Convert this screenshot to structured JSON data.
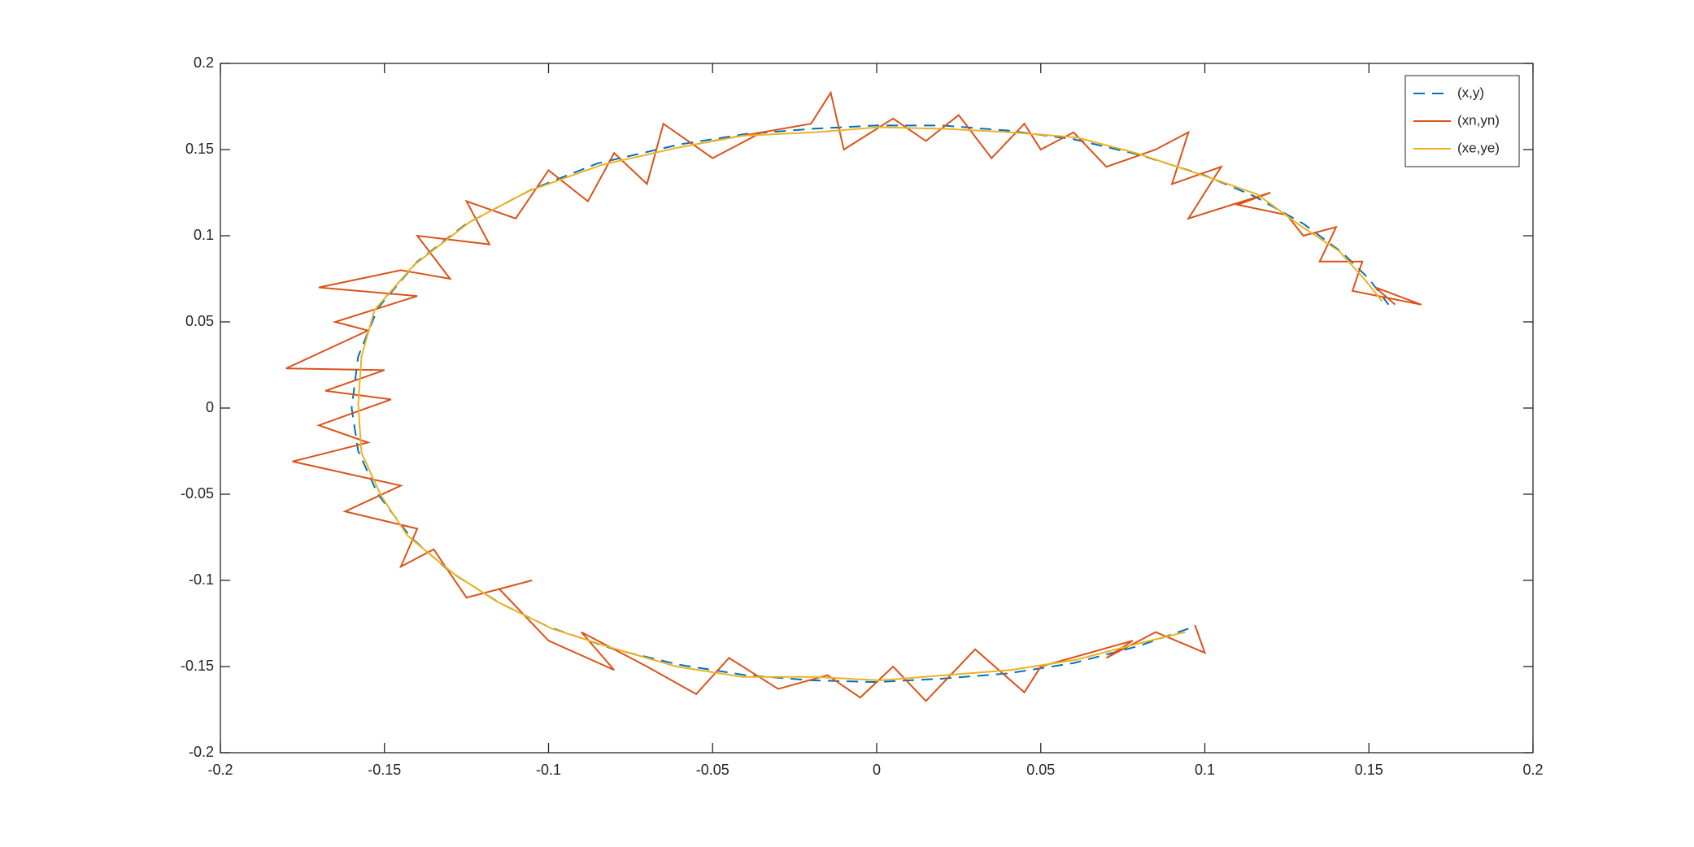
{
  "chart_data": {
    "type": "line",
    "xlim": [
      -0.2,
      0.2
    ],
    "ylim": [
      -0.2,
      0.2
    ],
    "xticks": [
      -0.2,
      -0.15,
      -0.1,
      -0.05,
      0,
      0.05,
      0.1,
      0.15,
      0.2
    ],
    "yticks": [
      -0.2,
      -0.15,
      -0.1,
      -0.05,
      0,
      0.05,
      0.1,
      0.15,
      0.2
    ],
    "grid": false,
    "legend": "northeast",
    "series": [
      {
        "name": "(x,y)",
        "color": "#0072BD",
        "line_style": "--",
        "x": [
          0.095,
          0.08,
          0.06,
          0.04,
          0.02,
          0,
          -0.02,
          -0.04,
          -0.06,
          -0.08,
          -0.1,
          -0.115,
          -0.13,
          -0.142,
          -0.152,
          -0.158,
          -0.16,
          -0.158,
          -0.152,
          -0.14,
          -0.125,
          -0.105,
          -0.085,
          -0.06,
          -0.04,
          -0.02,
          0,
          0.02,
          0.04,
          0.06,
          0.08,
          0.1,
          0.115,
          0.13,
          0.142,
          0.15,
          0.156
        ],
        "values": [
          -0.128,
          -0.138,
          -0.148,
          -0.154,
          -0.157,
          -0.159,
          -0.158,
          -0.155,
          -0.149,
          -0.14,
          -0.127,
          -0.113,
          -0.095,
          -0.075,
          -0.05,
          -0.025,
          0,
          0.03,
          0.058,
          0.085,
          0.107,
          0.127,
          0.142,
          0.153,
          0.159,
          0.162,
          0.164,
          0.164,
          0.161,
          0.156,
          0.147,
          0.135,
          0.123,
          0.107,
          0.09,
          0.075,
          0.06
        ]
      },
      {
        "name": "(xn,yn)",
        "color": "#D95319",
        "line_style": "-",
        "x": [
          0.097,
          0.1,
          0.085,
          0.07,
          0.078,
          0.05,
          0.045,
          0.03,
          0.015,
          0.005,
          -0.005,
          -0.015,
          -0.03,
          -0.045,
          -0.055,
          -0.07,
          -0.09,
          -0.08,
          -0.1,
          -0.115,
          -0.105,
          -0.125,
          -0.135,
          -0.145,
          -0.14,
          -0.162,
          -0.145,
          -0.178,
          -0.155,
          -0.17,
          -0.148,
          -0.168,
          -0.15,
          -0.18,
          -0.155,
          -0.165,
          -0.14,
          -0.17,
          -0.145,
          -0.13,
          -0.14,
          -0.118,
          -0.125,
          -0.11,
          -0.1,
          -0.088,
          -0.08,
          -0.07,
          -0.065,
          -0.05,
          -0.035,
          -0.05,
          -0.02,
          -0.014,
          -0.01,
          0.005,
          0.015,
          0.025,
          0.035,
          0.045,
          0.05,
          0.06,
          0.07,
          0.085,
          0.095,
          0.09,
          0.105,
          0.095,
          0.12,
          0.11,
          0.125,
          0.13,
          0.14,
          0.135,
          0.148,
          0.145,
          0.166,
          0.152,
          0.158
        ],
        "values": [
          -0.126,
          -0.142,
          -0.13,
          -0.145,
          -0.135,
          -0.15,
          -0.165,
          -0.14,
          -0.17,
          -0.15,
          -0.168,
          -0.155,
          -0.163,
          -0.145,
          -0.166,
          -0.15,
          -0.13,
          -0.152,
          -0.135,
          -0.105,
          -0.1,
          -0.11,
          -0.082,
          -0.092,
          -0.07,
          -0.06,
          -0.045,
          -0.031,
          -0.02,
          -0.01,
          0.005,
          0.01,
          0.022,
          0.023,
          0.045,
          0.05,
          0.065,
          0.07,
          0.08,
          0.075,
          0.1,
          0.095,
          0.12,
          0.11,
          0.138,
          0.12,
          0.148,
          0.13,
          0.165,
          0.145,
          0.16,
          0.155,
          0.165,
          0.183,
          0.15,
          0.168,
          0.155,
          0.17,
          0.145,
          0.165,
          0.15,
          0.16,
          0.14,
          0.15,
          0.16,
          0.13,
          0.14,
          0.11,
          0.125,
          0.118,
          0.112,
          0.1,
          0.105,
          0.085,
          0.085,
          0.068,
          0.06,
          0.07,
          0.06
        ]
      },
      {
        "name": "(xe,ye)",
        "color": "#EDB120",
        "line_style": "-",
        "x": [
          0.094,
          0.079,
          0.061,
          0.041,
          0.021,
          0.001,
          -0.019,
          -0.041,
          -0.061,
          -0.081,
          -0.099,
          -0.116,
          -0.129,
          -0.143,
          -0.151,
          -0.157,
          -0.158,
          -0.157,
          -0.153,
          -0.141,
          -0.124,
          -0.106,
          -0.084,
          -0.061,
          -0.041,
          -0.019,
          0.001,
          0.021,
          0.041,
          0.061,
          0.079,
          0.101,
          0.116,
          0.129,
          0.141,
          0.149,
          0.154
        ],
        "values": [
          -0.13,
          -0.137,
          -0.146,
          -0.152,
          -0.155,
          -0.158,
          -0.156,
          -0.156,
          -0.15,
          -0.139,
          -0.128,
          -0.112,
          -0.096,
          -0.074,
          -0.051,
          -0.026,
          0.002,
          0.03,
          0.057,
          0.083,
          0.108,
          0.126,
          0.141,
          0.151,
          0.158,
          0.16,
          0.163,
          0.162,
          0.16,
          0.157,
          0.148,
          0.134,
          0.124,
          0.106,
          0.091,
          0.074,
          0.062
        ]
      }
    ]
  }
}
